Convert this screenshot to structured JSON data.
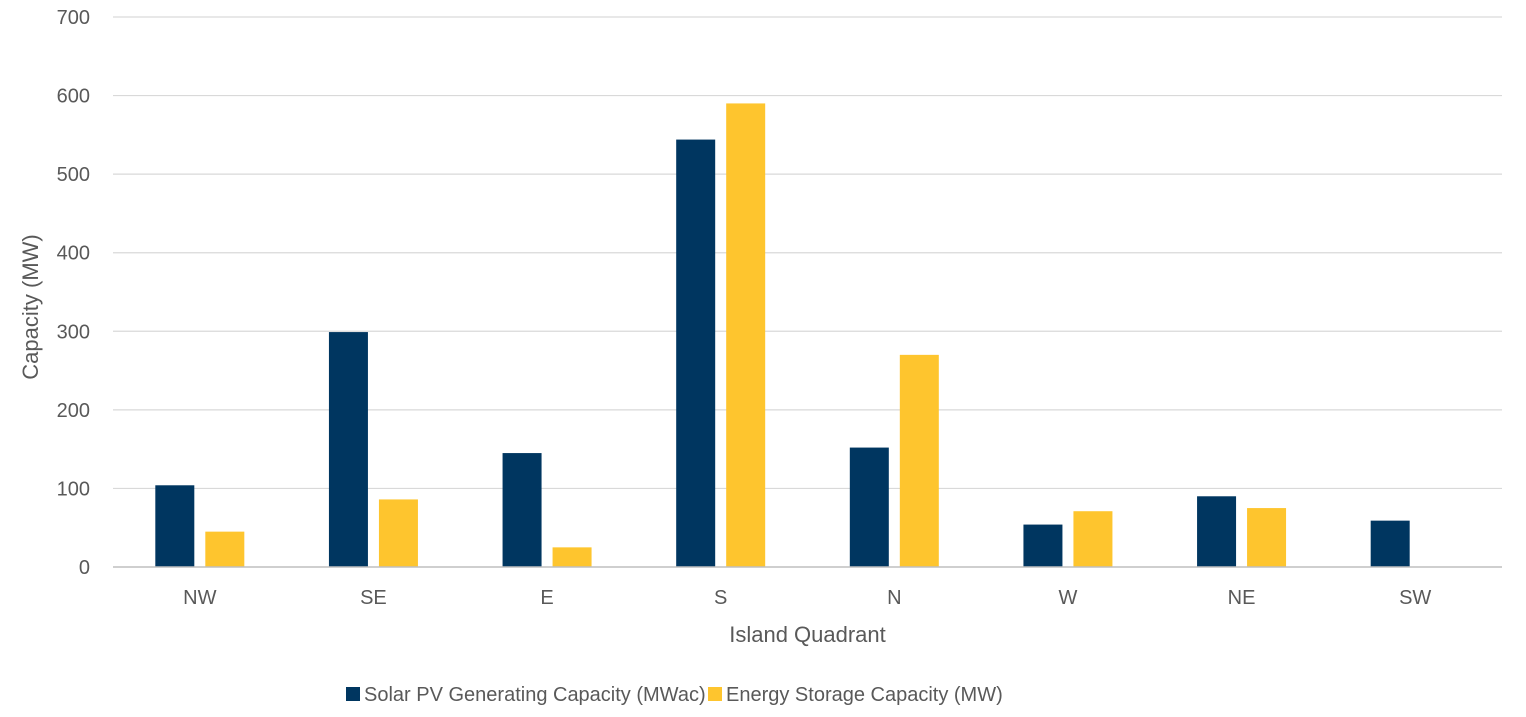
{
  "chart_data": {
    "type": "bar",
    "title": "",
    "xlabel": "Island Quadrant",
    "ylabel": "Capacity (MW)",
    "ylim": [
      0,
      700
    ],
    "yticks": [
      0,
      100,
      200,
      300,
      400,
      500,
      600,
      700
    ],
    "categories": [
      "NW",
      "SE",
      "E",
      "S",
      "N",
      "W",
      "NE",
      "SW"
    ],
    "series": [
      {
        "name": "Solar PV Generating Capacity (MWac)",
        "color": "#003660",
        "values": [
          104,
          299,
          145,
          544,
          152,
          54,
          90,
          59
        ]
      },
      {
        "name": "Energy Storage Capacity (MW)",
        "color": "#FEC52E",
        "values": [
          45,
          86,
          25,
          590,
          270,
          71,
          75,
          0
        ]
      }
    ],
    "grid": true,
    "legend_position": "bottom"
  }
}
